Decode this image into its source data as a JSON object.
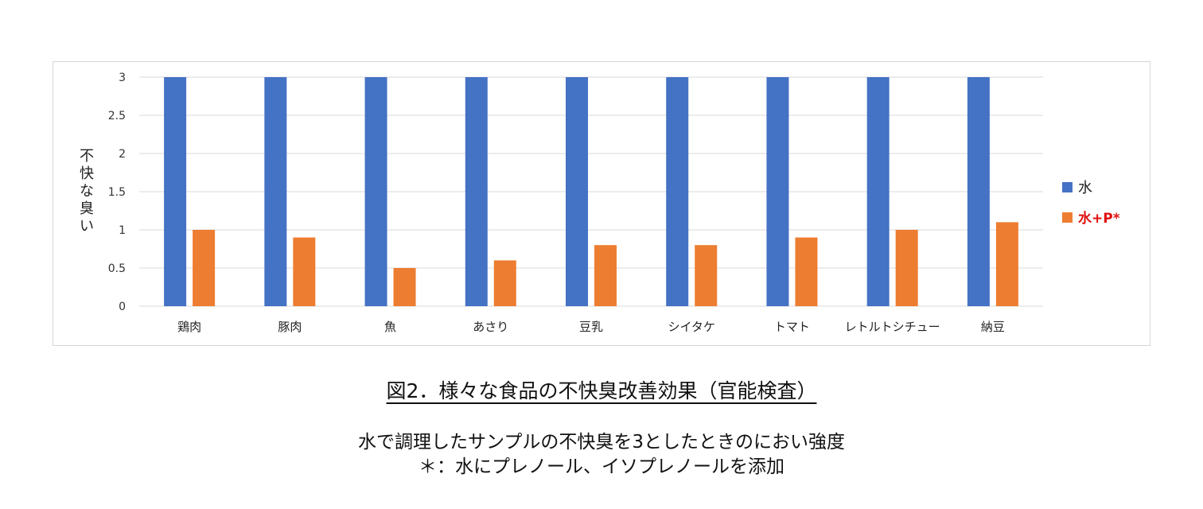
{
  "chart_data": {
    "type": "bar",
    "title": "",
    "ylabel": "不快な臭い",
    "xlabel": "",
    "ylim": [
      0,
      3
    ],
    "yticks": [
      0,
      0.5,
      1,
      1.5,
      2,
      2.5,
      3
    ],
    "grid": true,
    "legend_position": "right",
    "categories": [
      "鶏肉",
      "豚肉",
      "魚",
      "あさり",
      "豆乳",
      "シイタケ",
      "トマト",
      "レトルトシチュー",
      "納豆"
    ],
    "series": [
      {
        "name": "水",
        "color": "#4472C4",
        "values": [
          3,
          3,
          3,
          3,
          3,
          3,
          3,
          3,
          3
        ]
      },
      {
        "name": "水+P*",
        "color": "#ED7D31",
        "label_color": "#E01010",
        "values": [
          1.0,
          0.9,
          0.5,
          0.6,
          0.8,
          0.8,
          0.9,
          1.0,
          1.1
        ]
      }
    ]
  },
  "caption": {
    "title": "図2．様々な食品の不快臭改善効果（官能検査）",
    "note_1": "水で調理したサンプルの不快臭を3としたときのにおい強度",
    "note_2": "＊：水にプレノール、イソプレノールを添加"
  }
}
